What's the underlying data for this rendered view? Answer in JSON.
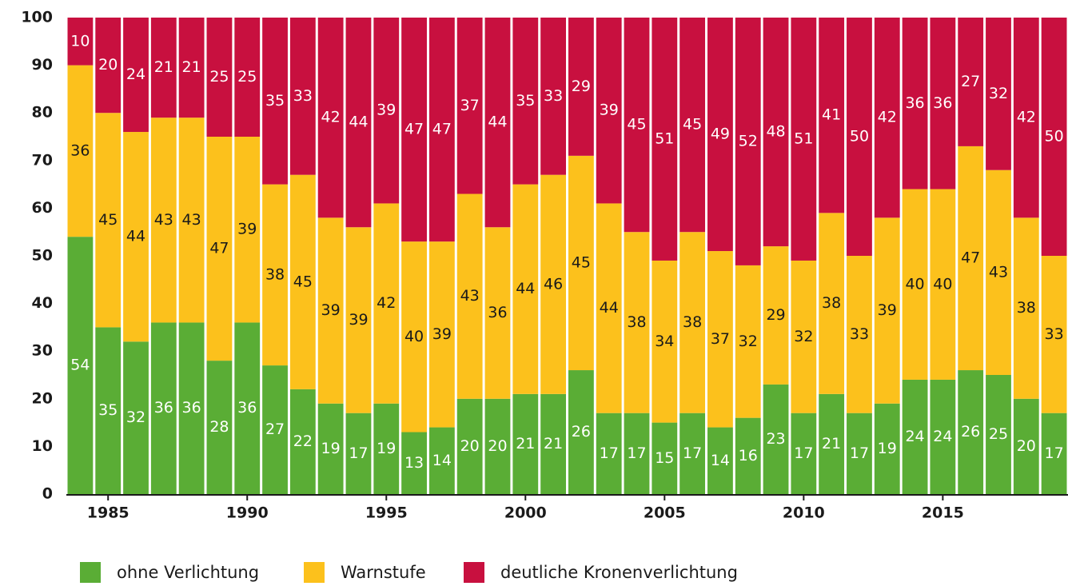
{
  "chart_data": {
    "type": "stacked-bar",
    "x": [
      1984,
      1985,
      1986,
      1987,
      1988,
      1989,
      1990,
      1991,
      1992,
      1993,
      1994,
      1995,
      1996,
      1997,
      1998,
      1999,
      2000,
      2001,
      2002,
      2003,
      2004,
      2005,
      2006,
      2007,
      2008,
      2009,
      2010,
      2011,
      2012,
      2013,
      2014,
      2015,
      2016,
      2017,
      2018,
      2019
    ],
    "series": [
      {
        "name": "ohne Verlichtung",
        "color": "#5aad35",
        "label_color": "#ffffff",
        "values": [
          54,
          35,
          32,
          36,
          36,
          28,
          36,
          27,
          22,
          19,
          17,
          19,
          13,
          14,
          20,
          20,
          21,
          21,
          26,
          17,
          17,
          15,
          17,
          14,
          16,
          23,
          17,
          21,
          17,
          19,
          24,
          24,
          26,
          25,
          20,
          17
        ]
      },
      {
        "name": "Warnstufe",
        "color": "#fcc11c",
        "label_color": "#1a1a1a",
        "values": [
          36,
          45,
          44,
          43,
          43,
          47,
          39,
          38,
          45,
          39,
          39,
          42,
          40,
          39,
          43,
          36,
          44,
          46,
          45,
          44,
          38,
          34,
          38,
          37,
          32,
          29,
          32,
          38,
          33,
          39,
          40,
          40,
          47,
          43,
          38,
          33
        ]
      },
      {
        "name": "deutliche Kronenverlichtung",
        "color": "#c8103f",
        "label_color": "#ffffff",
        "values": [
          10,
          20,
          24,
          21,
          21,
          25,
          25,
          35,
          33,
          42,
          44,
          39,
          47,
          47,
          37,
          44,
          35,
          33,
          29,
          39,
          45,
          51,
          45,
          49,
          52,
          48,
          51,
          41,
          50,
          42,
          36,
          36,
          27,
          32,
          42,
          50
        ]
      }
    ],
    "xlim": [
      1983.5,
      2019.5
    ],
    "xticks": [
      1985,
      1990,
      1995,
      2000,
      2005,
      2010,
      2015
    ],
    "ylim": [
      0,
      100
    ],
    "yticks": [
      0,
      10,
      20,
      30,
      40,
      50,
      60,
      70,
      80,
      90,
      100
    ],
    "grid": false,
    "legend": "bottom"
  }
}
